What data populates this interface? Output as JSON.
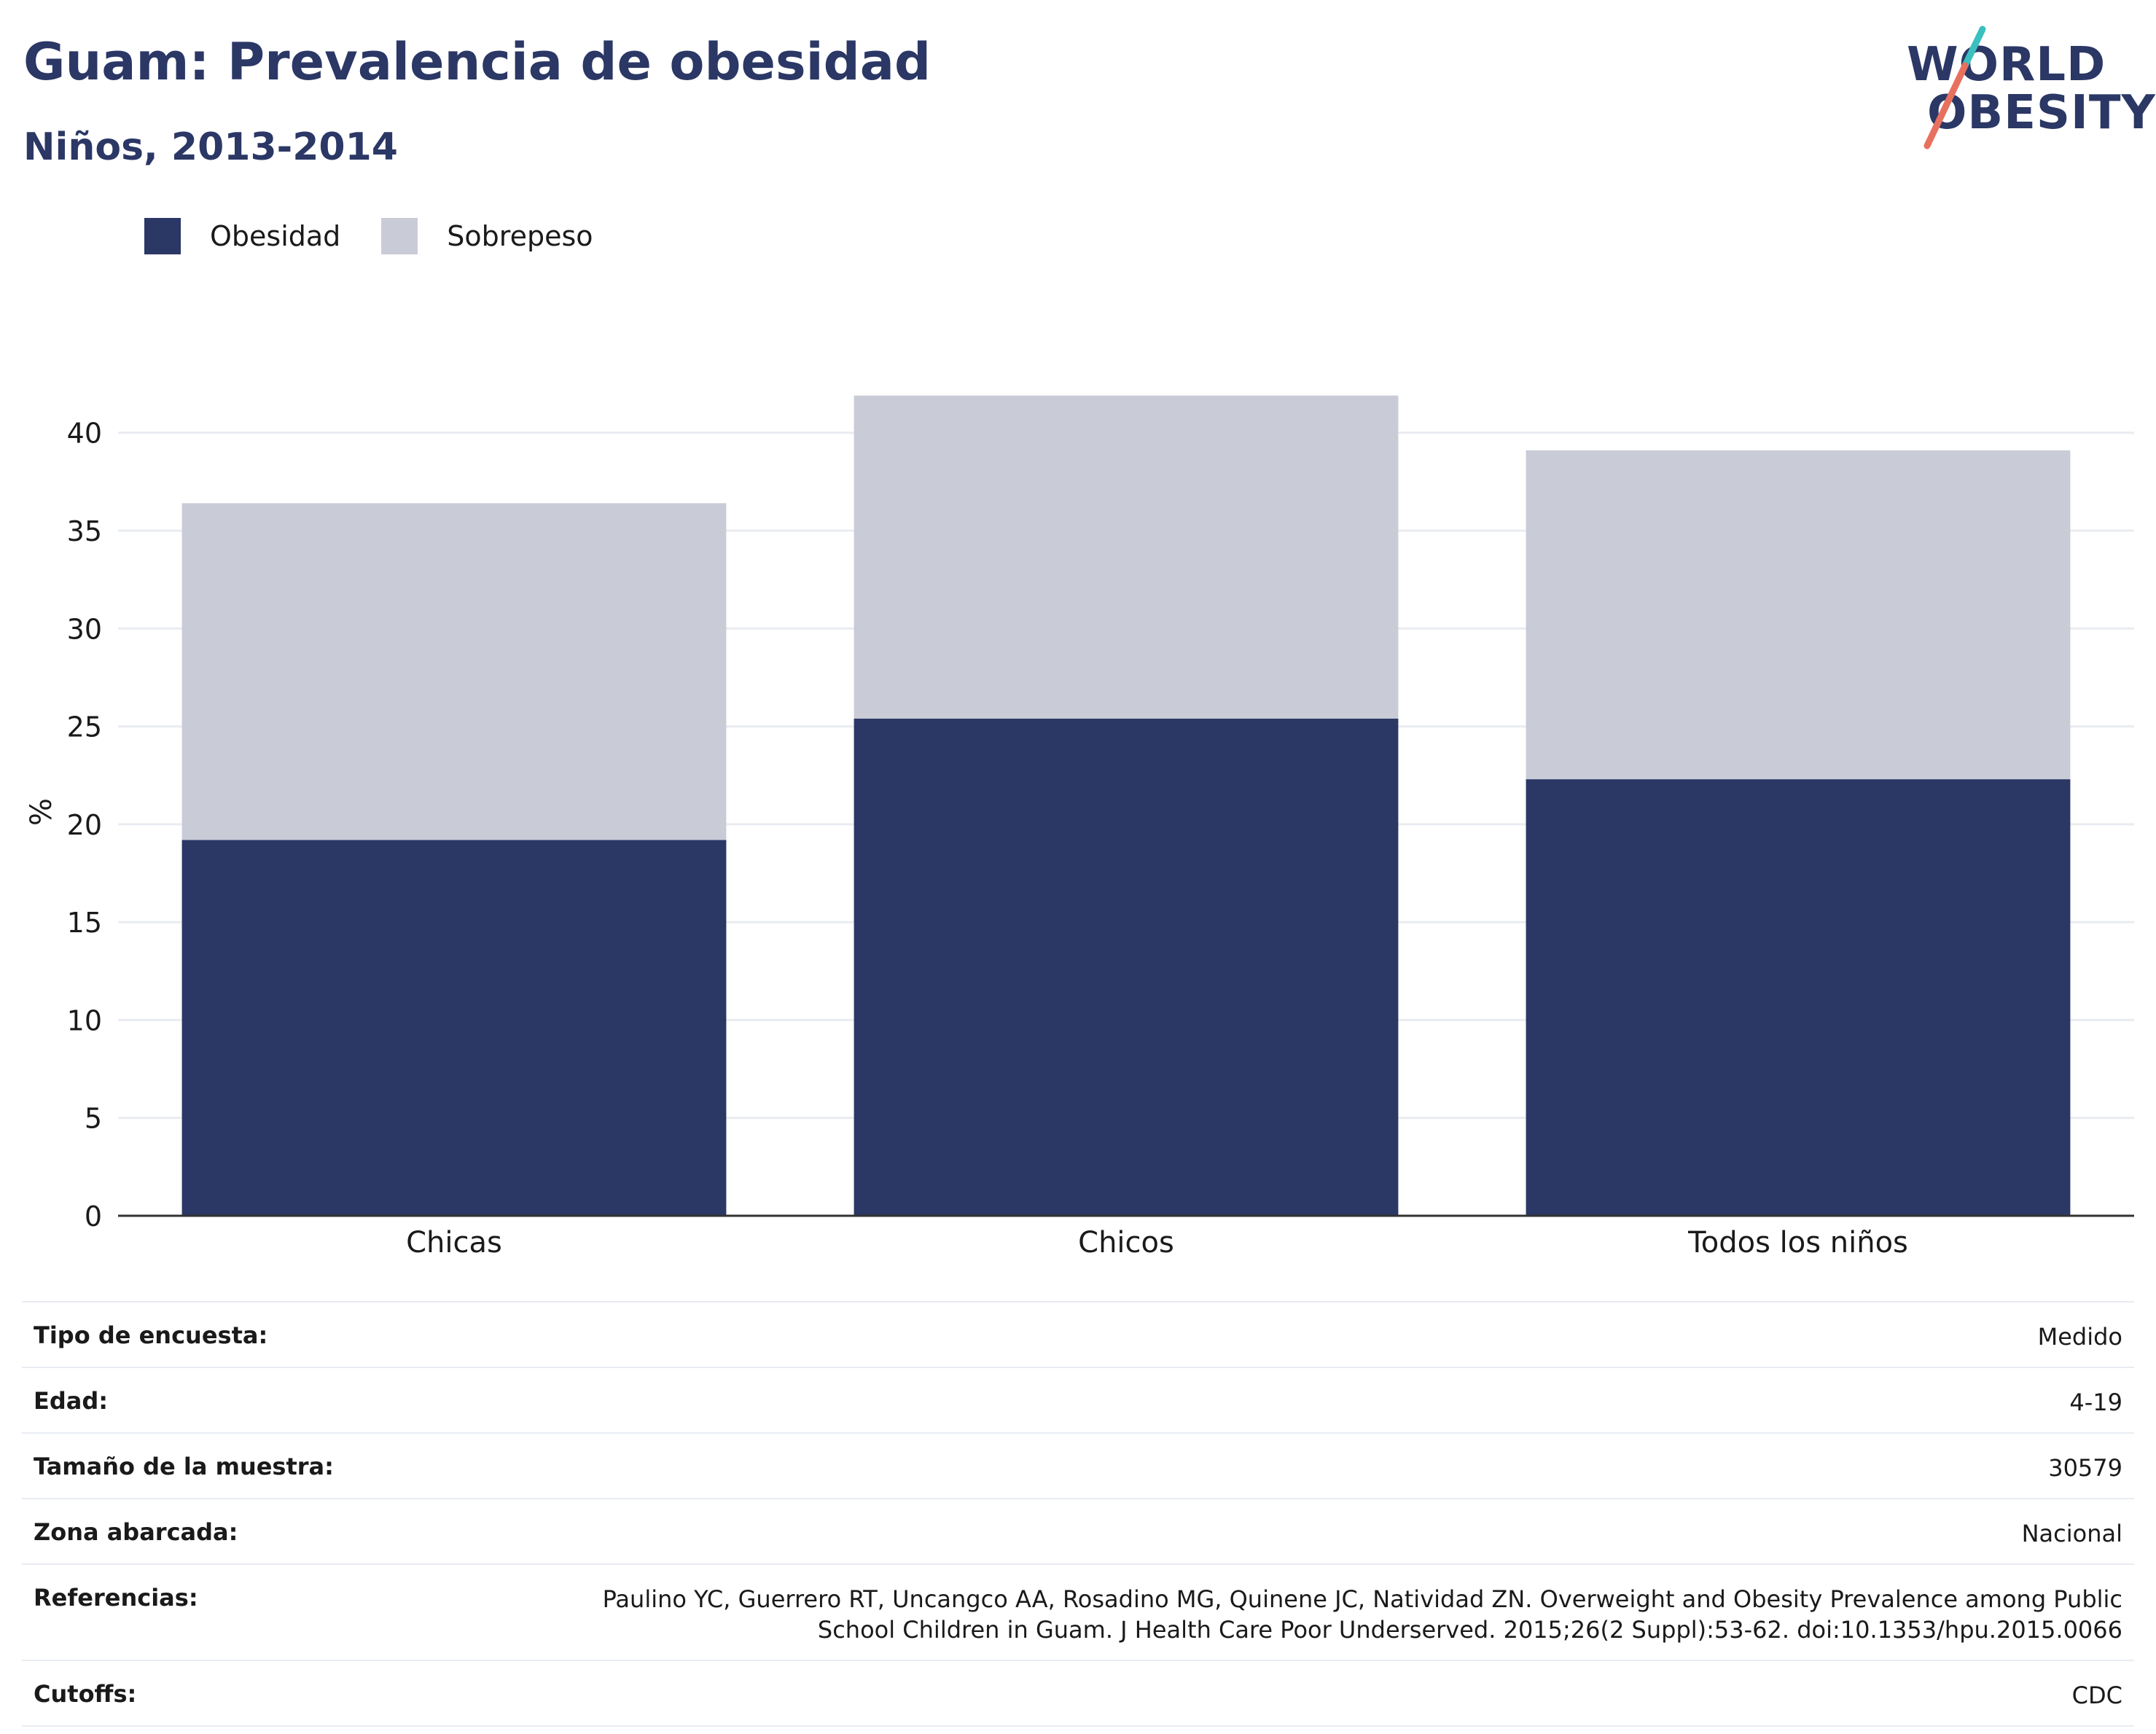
{
  "header": {
    "title": "Guam: Prevalencia de obesidad",
    "subtitle": "Niños, 2013-2014"
  },
  "logo": {
    "line1": "WORLD",
    "line2": "OBESITY",
    "colors": {
      "text": "#2b3765",
      "slash_top": "#3bbfbf",
      "slash_bottom": "#e8705f"
    }
  },
  "legend": [
    {
      "label": "Obesidad",
      "color": "#2b3765"
    },
    {
      "label": "Sobrepeso",
      "color": "#c9cbd7"
    }
  ],
  "chart_data": {
    "type": "bar",
    "stacked": true,
    "categories": [
      "Chicas",
      "Chicos",
      "Todos los niños"
    ],
    "series": [
      {
        "name": "Obesidad",
        "values": [
          19.2,
          25.4,
          22.3
        ],
        "color": "#2b3765"
      },
      {
        "name": "Sobrepeso",
        "values": [
          17.2,
          16.5,
          16.8
        ],
        "color": "#c9cbd7"
      }
    ],
    "ylabel": "%",
    "ylim": [
      0,
      42
    ],
    "yticks": [
      0,
      5,
      10,
      15,
      20,
      25,
      30,
      35,
      40
    ],
    "grid": true,
    "legend_position": "top-left"
  },
  "info_table": [
    {
      "key": "Tipo de encuesta:",
      "value": "Medido"
    },
    {
      "key": "Edad:",
      "value": "4-19"
    },
    {
      "key": "Tamaño de la muestra:",
      "value": "30579"
    },
    {
      "key": "Zona abarcada:",
      "value": "Nacional"
    },
    {
      "key": "Referencias:",
      "value": "Paulino YC, Guerrero RT, Uncangco AA, Rosadino MG, Quinene JC, Natividad ZN. Overweight and Obesity Prevalence among Public School Children in Guam. J Health Care Poor Underserved. 2015;26(2 Suppl):53-62. doi:10.1353/hpu.2015.0066"
    },
    {
      "key": "Cutoffs:",
      "value": "CDC"
    }
  ]
}
